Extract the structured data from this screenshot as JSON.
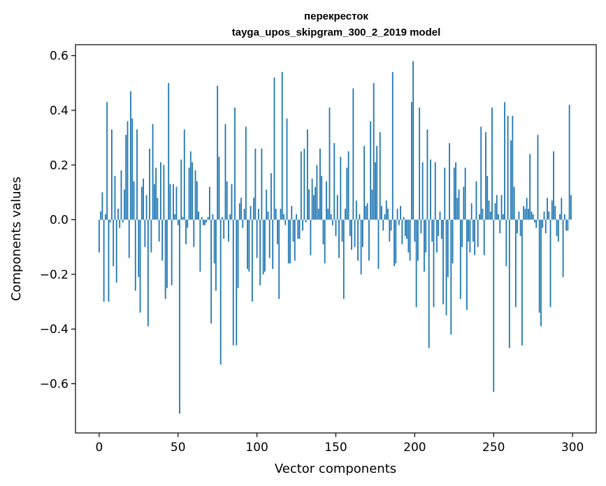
{
  "chart_data": {
    "type": "bar",
    "title_line1": "перекресток",
    "title_line2": "tayga_upos_skipgram_300_2_2019 model",
    "xlabel": "Vector components",
    "ylabel": "Components values",
    "xlim": [
      -15,
      315
    ],
    "ylim": [
      -0.78,
      0.64
    ],
    "x_ticks": [
      0,
      50,
      100,
      150,
      200,
      250,
      300
    ],
    "x_tick_labels": [
      "0",
      "50",
      "100",
      "150",
      "200",
      "250",
      "300"
    ],
    "y_ticks": [
      -0.6,
      -0.4,
      -0.2,
      0.0,
      0.2,
      0.4,
      0.6
    ],
    "y_tick_labels": [
      "−0.6",
      "−0.4",
      "−0.2",
      "0.0",
      "0.2",
      "0.4",
      "0.6"
    ],
    "bar_color": "#1f77b4",
    "values": [
      -0.12,
      0.03,
      0.1,
      -0.3,
      0.02,
      0.43,
      -0.3,
      -0.01,
      0.33,
      -0.17,
      0.16,
      -0.23,
      0.04,
      -0.03,
      0.18,
      -0.01,
      0.11,
      0.31,
      0.36,
      -0.14,
      0.47,
      0.37,
      0.14,
      -0.26,
      0.33,
      -0.21,
      -0.34,
      0.12,
      0.15,
      -0.1,
      0.09,
      -0.39,
      0.26,
      -0.12,
      0.35,
      0.13,
      0.19,
      0.08,
      -0.08,
      0.21,
      -0.15,
      0.2,
      -0.29,
      -0.25,
      0.5,
      0.13,
      -0.24,
      0.13,
      0.02,
      0.12,
      -0.02,
      -0.71,
      0.22,
      0.01,
      0.33,
      -0.09,
      -0.03,
      0.19,
      0.25,
      0.21,
      -0.1,
      0.18,
      0.14,
      0.03,
      -0.19,
      0.01,
      -0.02,
      -0.02,
      -0.01,
      0.01,
      0.12,
      -0.38,
      0.02,
      -0.16,
      -0.26,
      0.49,
      0.23,
      -0.53,
      0.01,
      -0.07,
      0.35,
      0.14,
      -0.08,
      0.02,
      0.13,
      -0.46,
      0.41,
      -0.46,
      -0.25,
      0.06,
      0.08,
      -0.03,
      0.04,
      0.34,
      -0.18,
      -0.19,
      0.05,
      -0.3,
      0.08,
      0.26,
      -0.14,
      0.04,
      -0.24,
      0.26,
      -0.2,
      -0.19,
      0.11,
      0.03,
      -0.14,
      0.17,
      -0.18,
      0.52,
      0.04,
      -0.09,
      -0.29,
      0.04,
      0.54,
      0.02,
      -0.02,
      0.37,
      -0.16,
      -0.16,
      0.05,
      -0.08,
      -0.15,
      0.02,
      -0.07,
      -0.07,
      0.25,
      -0.04,
      0.26,
      -0.01,
      0.33,
      0.11,
      -0.13,
      0.15,
      0.09,
      0.12,
      0.2,
      0.04,
      0.26,
      0.16,
      -0.09,
      -0.16,
      0.14,
      0.04,
      0.41,
      0.02,
      -0.02,
      0.28,
      -0.06,
      0.09,
      -0.14,
      0.23,
      -0.08,
      -0.29,
      0.04,
      0.19,
      0.25,
      -0.06,
      -0.11,
      0.48,
      -0.1,
      0.07,
      -0.15,
      0.02,
      -0.2,
      -0.1,
      0.27,
      0.05,
      0.06,
      -0.15,
      0.36,
      0.11,
      0.5,
      0.21,
      0.27,
      -0.18,
      0.32,
      0.05,
      -0.04,
      0.02,
      0.07,
      0.04,
      -0.08,
      -0.04,
      0.54,
      -0.17,
      -0.16,
      0.04,
      -0.02,
      0.05,
      -0.09,
      0.01,
      -0.06,
      -0.07,
      -0.12,
      -0.15,
      0.43,
      0.58,
      -0.08,
      -0.32,
      -0.15,
      0.41,
      -0.05,
      0.21,
      -0.19,
      -0.12,
      0.33,
      -0.47,
      0.22,
      -0.08,
      -0.32,
      0.21,
      -0.12,
      -0.06,
      0.03,
      -0.07,
      -0.31,
      0.19,
      -0.35,
      -0.21,
      0.28,
      -0.42,
      -0.16,
      0.19,
      0.21,
      0.08,
      0.11,
      -0.29,
      -0.1,
      0.12,
      0.19,
      -0.33,
      -0.08,
      -0.12,
      0.06,
      -0.08,
      -0.13,
      0.14,
      -0.1,
      0.02,
      0.34,
      0.04,
      -0.13,
      0.32,
      0.16,
      0.07,
      0.03,
      0.41,
      -0.63,
      0.06,
      0.09,
      0.02,
      -0.05,
      0.09,
      0.02,
      0.43,
      -0.17,
      0.38,
      -0.47,
      0.29,
      0.38,
      0.12,
      -0.32,
      -0.05,
      0.03,
      -0.06,
      -0.46,
      0.05,
      0.04,
      0.08,
      0.04,
      0.24,
      0.03,
      0.02,
      -0.01,
      -0.03,
      0.31,
      -0.34,
      -0.39,
      -0.03,
      0.03,
      -0.05,
      0.08,
      0.03,
      -0.32,
      0.07,
      0.25,
      0.05,
      -0.06,
      -0.08,
      0.02,
      0.08,
      -0.21,
      0.02,
      -0.04,
      -0.04,
      0.42,
      0.09
    ]
  }
}
